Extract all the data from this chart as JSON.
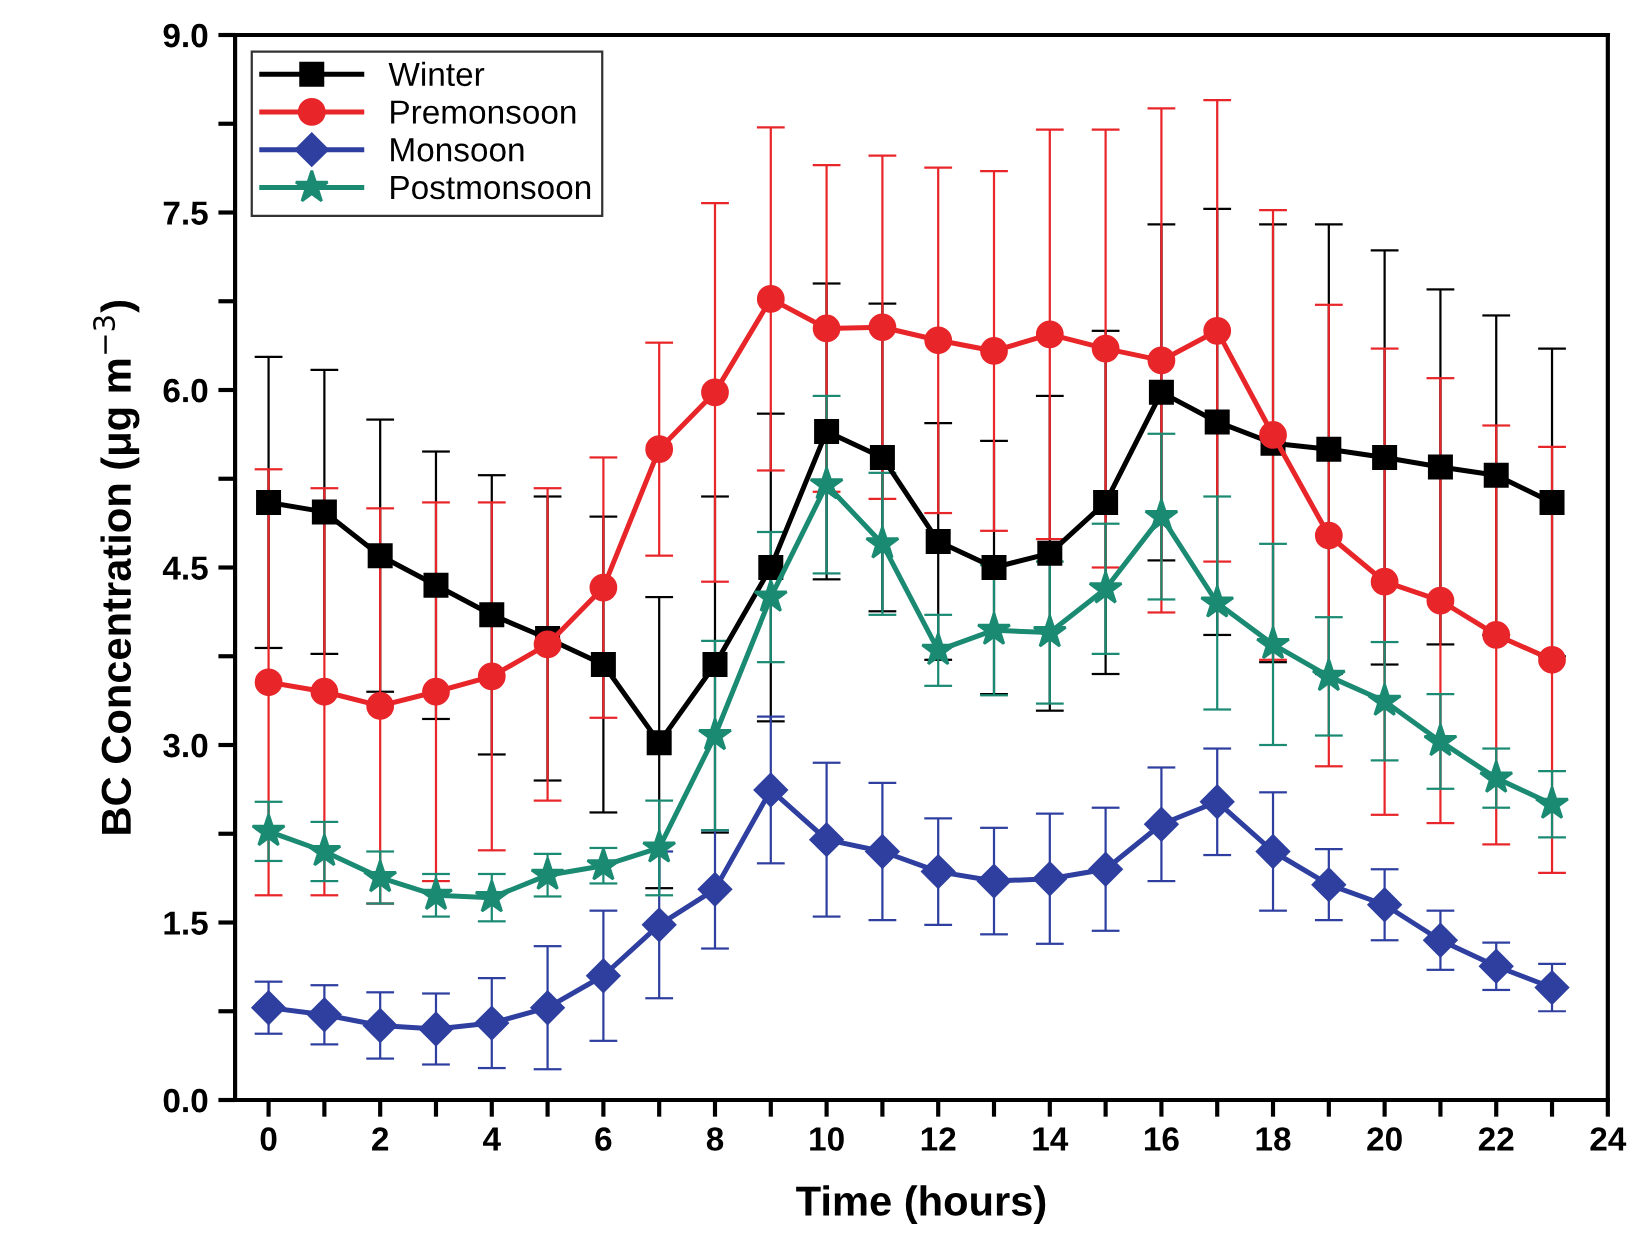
{
  "chart_data": {
    "type": "line",
    "xlabel": "Time (hours)",
    "ylabel": "BC Concentration (μg m$^{−3}$)",
    "x": [
      0,
      1,
      2,
      3,
      4,
      5,
      6,
      7,
      8,
      9,
      10,
      11,
      12,
      13,
      14,
      15,
      16,
      17,
      18,
      19,
      20,
      21,
      22,
      23
    ],
    "xlim": [
      -0.6,
      24
    ],
    "ylim": [
      0,
      9
    ],
    "xticks": [
      0,
      {
        "value": 1,
        "label": null
      },
      2,
      {
        "value": 3,
        "label": null
      },
      4,
      {
        "value": 5,
        "label": null
      },
      6,
      {
        "value": 7,
        "label": null
      },
      8,
      {
        "value": 9,
        "label": null
      },
      10,
      {
        "value": 11,
        "label": null
      },
      12,
      {
        "value": 13,
        "label": null
      },
      14,
      {
        "value": 15,
        "label": null
      },
      16,
      {
        "value": 17,
        "label": null
      },
      18,
      {
        "value": 19,
        "label": null
      },
      20,
      {
        "value": 21,
        "label": null
      },
      22,
      {
        "value": 23,
        "label": null
      },
      24
    ],
    "yticks": [
      {
        "value": 0,
        "label": "0.0"
      },
      {
        "value": 0.75,
        "label": null
      },
      1.5,
      {
        "value": 2.25,
        "label": null
      },
      {
        "value": 3,
        "label": "3.0"
      },
      {
        "value": 3.75,
        "label": null
      },
      4.5,
      {
        "value": 5.25,
        "label": null
      },
      {
        "value": 6,
        "label": "6.0"
      },
      {
        "value": 6.75,
        "label": null
      },
      7.5,
      {
        "value": 8.25,
        "label": null
      },
      {
        "value": 9,
        "label": "9.0"
      }
    ],
    "grid": false,
    "legend": "top left",
    "series": [
      {
        "name": "Winter",
        "color": "#000000",
        "marker": "square",
        "values": [
          5.05,
          4.97,
          4.6,
          4.35,
          4.1,
          3.9,
          3.68,
          3.02,
          3.68,
          4.5,
          5.65,
          5.43,
          4.72,
          4.5,
          4.62,
          5.05,
          5.98,
          5.73,
          5.55,
          5.5,
          5.43,
          5.35,
          5.28,
          5.05
        ],
        "errors": [
          1.23,
          1.2,
          1.15,
          1.13,
          1.18,
          1.2,
          1.25,
          1.23,
          1.42,
          1.3,
          1.25,
          1.3,
          1.0,
          1.07,
          1.33,
          1.45,
          1.42,
          1.8,
          1.85,
          1.9,
          1.75,
          1.5,
          1.35,
          1.3
        ]
      },
      {
        "name": "Premonsoon",
        "color": "#e8262a",
        "marker": "circle",
        "values": [
          3.53,
          3.45,
          3.33,
          3.45,
          3.58,
          3.85,
          4.33,
          5.5,
          5.98,
          6.77,
          6.52,
          6.53,
          6.42,
          6.33,
          6.47,
          6.35,
          6.25,
          6.5,
          5.62,
          4.77,
          4.38,
          4.22,
          3.93,
          3.72
        ],
        "errors": [
          1.8,
          1.72,
          1.67,
          1.6,
          1.47,
          1.32,
          1.1,
          0.9,
          1.6,
          1.45,
          1.38,
          1.45,
          1.46,
          1.52,
          1.73,
          1.85,
          2.13,
          1.95,
          1.9,
          1.95,
          1.97,
          1.88,
          1.77,
          1.8
        ]
      },
      {
        "name": "Monsoon",
        "color": "#2e3fa0",
        "marker": "diamond",
        "values": [
          0.78,
          0.72,
          0.63,
          0.6,
          0.65,
          0.78,
          1.05,
          1.48,
          1.78,
          2.62,
          2.2,
          2.1,
          1.93,
          1.85,
          1.87,
          1.95,
          2.33,
          2.52,
          2.1,
          1.82,
          1.65,
          1.35,
          1.13,
          0.95
        ],
        "errors": [
          0.22,
          0.25,
          0.28,
          0.3,
          0.38,
          0.52,
          0.55,
          0.62,
          0.5,
          0.62,
          0.65,
          0.58,
          0.45,
          0.45,
          0.55,
          0.52,
          0.48,
          0.45,
          0.5,
          0.3,
          0.3,
          0.25,
          0.2,
          0.2
        ]
      },
      {
        "name": "Postmonsoon",
        "color": "#1b8a72",
        "marker": "star",
        "values": [
          2.27,
          2.1,
          1.88,
          1.73,
          1.71,
          1.9,
          1.98,
          2.13,
          3.08,
          4.25,
          5.2,
          4.7,
          3.8,
          3.97,
          3.95,
          4.32,
          4.93,
          4.2,
          3.85,
          3.58,
          3.37,
          3.03,
          2.72,
          2.5
        ],
        "errors": [
          0.25,
          0.25,
          0.22,
          0.18,
          0.2,
          0.18,
          0.15,
          0.4,
          0.8,
          0.55,
          0.75,
          0.6,
          0.3,
          0.55,
          0.6,
          0.55,
          0.7,
          0.9,
          0.85,
          0.5,
          0.5,
          0.4,
          0.25,
          0.28
        ]
      }
    ]
  }
}
